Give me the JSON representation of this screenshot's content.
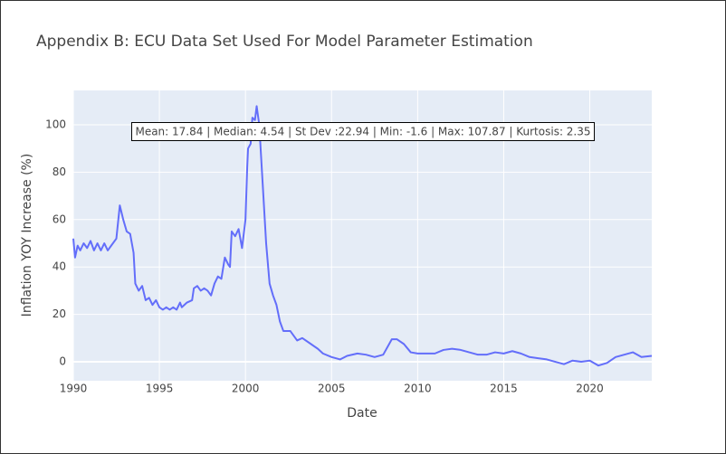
{
  "chart_data": {
    "type": "line",
    "title": "Appendix B: ECU Data Set Used For Model Parameter Estimation",
    "x_label": "Date",
    "y_label": "Inflation YOY Increase (%)",
    "annotation": "Mean: 17.84 | Median: 4.54 | St Dev :22.94 | Min: -1.6 | Max: 107.87 | Kurtosis: 2.35",
    "grid": true,
    "xlim": [
      1990,
      2023.6
    ],
    "xticks": [
      1990,
      1995,
      2000,
      2005,
      2010,
      2015,
      2020
    ],
    "ylim": [
      -8,
      114.5
    ],
    "yticks": [
      0,
      20,
      40,
      60,
      80,
      100
    ],
    "x": [
      1990.0,
      1990.1,
      1990.25,
      1990.4,
      1990.6,
      1990.8,
      1991.0,
      1991.2,
      1991.4,
      1991.6,
      1991.8,
      1992.0,
      1992.2,
      1992.5,
      1992.7,
      1992.9,
      1993.1,
      1993.3,
      1993.5,
      1993.6,
      1993.8,
      1994.0,
      1994.2,
      1994.4,
      1994.6,
      1994.8,
      1995.0,
      1995.2,
      1995.4,
      1995.6,
      1995.8,
      1996.0,
      1996.2,
      1996.3,
      1996.6,
      1996.9,
      1997.0,
      1997.2,
      1997.4,
      1997.6,
      1997.8,
      1998.0,
      1998.2,
      1998.4,
      1998.6,
      1998.8,
      1999.0,
      1999.1,
      1999.2,
      1999.4,
      1999.6,
      1999.8,
      2000.0,
      2000.1,
      2000.15,
      2000.3,
      2000.4,
      2000.55,
      2000.65,
      2000.8,
      2001.0,
      2001.2,
      2001.4,
      2001.6,
      2001.8,
      2002.0,
      2002.2,
      2002.6,
      2003.0,
      2003.3,
      2003.8,
      2004.2,
      2004.5,
      2005.0,
      2005.5,
      2005.9,
      2006.5,
      2007.0,
      2007.5,
      2008.0,
      2008.5,
      2008.8,
      2009.2,
      2009.6,
      2010.0,
      2010.5,
      2011.0,
      2011.5,
      2012.0,
      2012.5,
      2013.0,
      2013.5,
      2014.0,
      2014.5,
      2015.0,
      2015.5,
      2016.0,
      2016.5,
      2017.0,
      2017.5,
      2018.0,
      2018.5,
      2019.0,
      2019.5,
      2020.0,
      2020.5,
      2021.0,
      2021.5,
      2022.0,
      2022.5,
      2023.0,
      2023.6
    ],
    "series": [
      {
        "name": "Inflation",
        "color": "#636efa",
        "values": [
          52,
          44,
          49,
          47,
          50,
          48,
          51,
          47,
          50,
          47,
          50,
          47,
          49,
          52,
          66,
          60,
          55,
          54,
          46,
          33,
          30,
          32,
          26,
          27,
          24,
          26,
          23,
          22,
          23,
          22,
          23,
          22,
          25,
          23,
          25,
          26,
          31,
          32,
          30,
          31,
          30,
          28,
          33,
          36,
          35,
          44,
          41,
          40,
          55,
          53,
          56,
          48,
          60,
          82,
          90,
          92,
          103,
          102,
          107.87,
          100,
          75,
          50,
          33,
          28,
          24,
          17,
          13,
          13,
          9,
          10,
          7.5,
          5.5,
          3.5,
          2,
          1,
          2.5,
          3.5,
          3,
          2,
          3,
          9.5,
          9.5,
          7.5,
          4,
          3.5,
          3.5,
          3.5,
          5,
          5.5,
          5,
          4,
          3,
          3,
          4,
          3.5,
          4.5,
          3.5,
          2,
          1.5,
          1,
          0,
          -1,
          0.5,
          0,
          0.5,
          -1.6,
          -0.5,
          2,
          3,
          4,
          2,
          2.5
        ]
      }
    ]
  }
}
